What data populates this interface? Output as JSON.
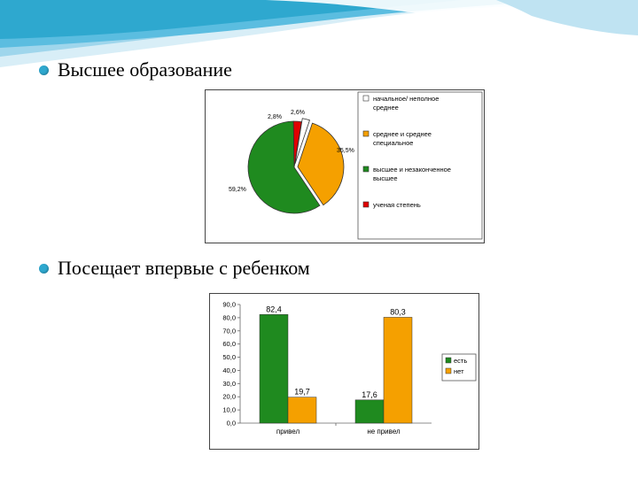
{
  "bullets": [
    {
      "text": "Высшее образование"
    },
    {
      "text": "Посещает впервые с ребенком"
    }
  ],
  "colors": {
    "accent": "#2ea8cf",
    "green": "#1f8a1f",
    "orange": "#f5a000",
    "red": "#e00000",
    "white_slice": "#ffffff"
  },
  "chart_data": [
    {
      "type": "pie",
      "title": "",
      "slices": [
        {
          "legend": "начальное/ неполное среднее",
          "value": 2.6,
          "label": "2,6%",
          "color": "#ffffff"
        },
        {
          "legend": "среднее и среднее специальное",
          "value": 35.5,
          "label": "35,5%",
          "color": "#f5a000"
        },
        {
          "legend": "высшее и незаконченное высшее",
          "value": 59.2,
          "label": "59,2%",
          "color": "#1f8a1f"
        },
        {
          "legend": "ученая степень",
          "value": 2.8,
          "label": "2,8%",
          "color": "#e00000"
        }
      ],
      "legend_placement": "right"
    },
    {
      "type": "bar",
      "title": "",
      "categories": [
        "привел",
        "не привел"
      ],
      "series": [
        {
          "name": "есть",
          "color": "#1f8a1f",
          "values": [
            82.4,
            17.6
          ],
          "labels": [
            "82,4",
            "17,6"
          ]
        },
        {
          "name": "нет",
          "color": "#f5a000",
          "values": [
            19.7,
            80.3
          ],
          "labels": [
            "19,7",
            "80,3"
          ]
        }
      ],
      "ylim": [
        0,
        90
      ],
      "yticks": [
        "0,0",
        "10,0",
        "20,0",
        "30,0",
        "40,0",
        "50,0",
        "60,0",
        "70,0",
        "80,0",
        "90,0"
      ],
      "legend_placement": "right"
    }
  ]
}
